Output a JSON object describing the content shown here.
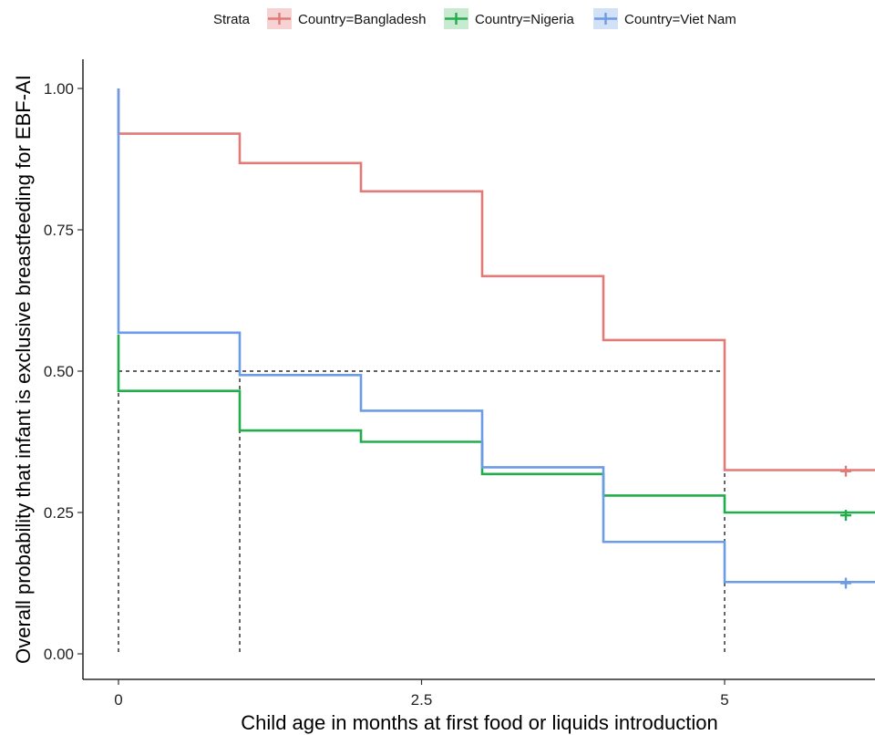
{
  "chart_data": {
    "type": "line",
    "subtype": "step (Kaplan-Meier survival curves)",
    "xlabel": "Child age in months at first food or liquids introduction",
    "ylabel": "Overall probability that infant is exclusive breastfeeding for EBF-AI",
    "xlim": [
      -0.3,
      6.3
    ],
    "ylim": [
      -0.05,
      1.05
    ],
    "x_ticks": [
      0,
      2.5,
      5
    ],
    "x_tick_labels": [
      "0",
      "2.5",
      "5"
    ],
    "y_ticks": [
      0,
      0.25,
      0.5,
      0.75,
      1.0
    ],
    "y_tick_labels": [
      "0.00",
      "0.25",
      "0.50",
      "0.75",
      "1.00"
    ],
    "grid": false,
    "legend": {
      "position": "top",
      "title": "Strata",
      "entries": [
        "Country=Bangladesh",
        "Country=Nigeria",
        "Country=Viet Nam"
      ]
    },
    "series": [
      {
        "name": "Country=Bangladesh",
        "color": "#e07b78",
        "steps": [
          [
            0,
            1.0
          ],
          [
            0,
            0.92
          ],
          [
            1,
            0.868
          ],
          [
            2,
            0.818
          ],
          [
            3,
            0.668
          ],
          [
            4,
            0.555
          ],
          [
            5,
            0.325
          ],
          [
            6.3,
            0.325
          ]
        ],
        "censor_marks": [
          [
            6.0,
            0.323
          ]
        ]
      },
      {
        "name": "Country=Nigeria",
        "color": "#22ad4c",
        "steps": [
          [
            0,
            0.565
          ],
          [
            0,
            0.465
          ],
          [
            1,
            0.395
          ],
          [
            2,
            0.375
          ],
          [
            3,
            0.318
          ],
          [
            4,
            0.28
          ],
          [
            5,
            0.25
          ],
          [
            6.3,
            0.248
          ]
        ],
        "censor_marks": [
          [
            6.0,
            0.245
          ]
        ]
      },
      {
        "name": "Country=Viet Nam",
        "color": "#6d9ce6",
        "steps": [
          [
            0,
            1.0
          ],
          [
            0,
            0.568
          ],
          [
            1,
            0.493
          ],
          [
            2,
            0.43
          ],
          [
            3,
            0.33
          ],
          [
            4,
            0.198
          ],
          [
            5,
            0.127
          ],
          [
            6.3,
            0.125
          ]
        ],
        "censor_marks": [
          [
            6.0,
            0.125
          ]
        ]
      }
    ],
    "reference_lines": {
      "horizontal_y": 0.5,
      "horizontal_x_end": 5,
      "vertical_x": [
        0,
        1,
        5
      ],
      "style": "dashed"
    }
  }
}
